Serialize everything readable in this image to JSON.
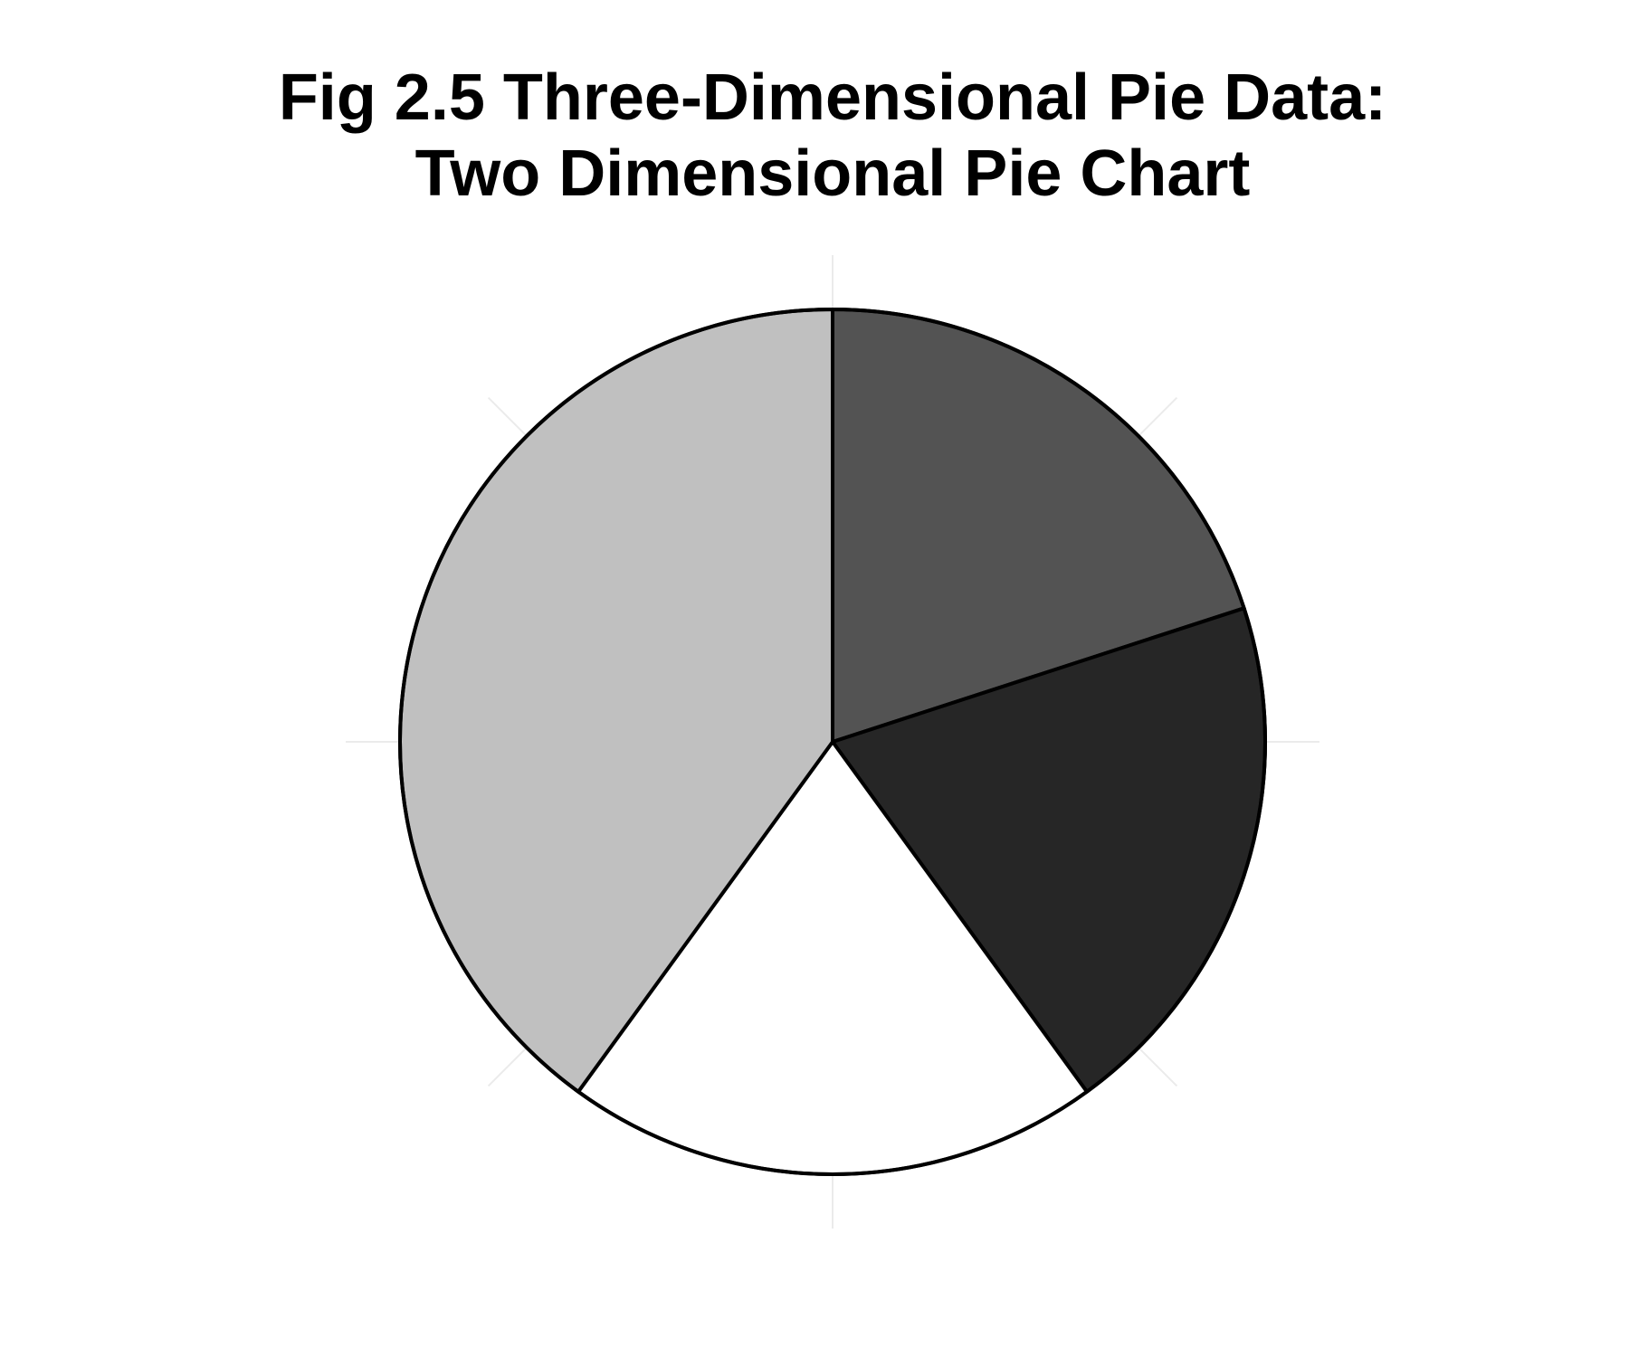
{
  "chart_data": {
    "type": "pie",
    "title": "Fig 2.5 Three-Dimensional Pie Data:",
    "subtitle": "Two Dimensional Pie Chart",
    "start": "12 o'clock, clockwise",
    "slices": [
      {
        "value": 20,
        "color": "#535353"
      },
      {
        "value": 20,
        "color": "#262626"
      },
      {
        "value": 20,
        "color": "#ffffff"
      },
      {
        "value": 40,
        "color": "#c0c0c0"
      }
    ],
    "edge_color": "#000000",
    "grid": true
  }
}
